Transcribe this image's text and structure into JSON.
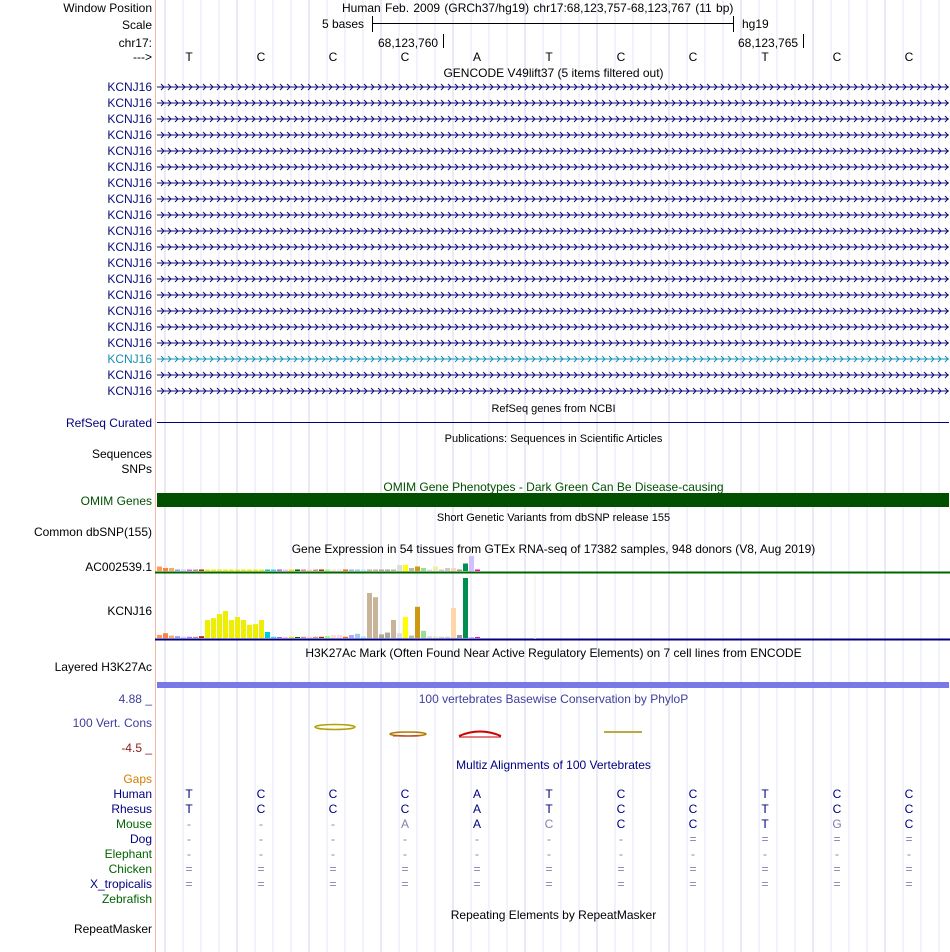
{
  "header": {
    "window_position_label": "Window Position",
    "window_position_value": "Human Feb. 2009 (GRCh37/hg19)   chr17:68,123,757-68,123,767 (11 bp)",
    "scale_label": "Scale",
    "scale_text": "5 bases",
    "assembly": "hg19",
    "chrom_label": "chr17:",
    "coord_left": "68,123,760",
    "coord_right": "68,123,765",
    "strand_label": "--->"
  },
  "bases": [
    "T",
    "C",
    "C",
    "C",
    "A",
    "T",
    "C",
    "C",
    "T",
    "C",
    "C"
  ],
  "gencode": {
    "title": "GENCODE V49lift37 (5 items filtered out)",
    "items": [
      "KCNJ16",
      "KCNJ16",
      "KCNJ16",
      "KCNJ16",
      "KCNJ16",
      "KCNJ16",
      "KCNJ16",
      "KCNJ16",
      "KCNJ16",
      "KCNJ16",
      "KCNJ16",
      "KCNJ16",
      "KCNJ16",
      "KCNJ16",
      "KCNJ16",
      "KCNJ16",
      "KCNJ16",
      "KCNJ16",
      "KCNJ16",
      "KCNJ16"
    ],
    "highlighted_index": 17,
    "colors": {
      "default": "#0c0c78",
      "highlighted": "#1a8fb5"
    }
  },
  "refseq": {
    "title": "RefSeq genes from NCBI",
    "label": "RefSeq Curated"
  },
  "publications": {
    "title": "Publications: Sequences in Scientific Articles",
    "labels": [
      "Sequences",
      "SNPs"
    ]
  },
  "omim": {
    "title": "OMIM Gene Phenotypes - Dark Green Can Be Disease-causing",
    "label": "OMIM Genes",
    "color": "#005000"
  },
  "dbsnp": {
    "title": "Short Genetic Variants from dbSNP release 155",
    "label": "Common dbSNP(155)"
  },
  "gtex": {
    "title": "Gene Expression in 54 tissues from GTEx RNA-seq of 17382 samples, 948 donors (V8, Aug 2019)",
    "genes": [
      {
        "label": "AC002539.1",
        "values": [
          0.3,
          0.2,
          0.2,
          0.1,
          0.1,
          0.1,
          0.1,
          0.1,
          0.1,
          0.1,
          0.1,
          0.1,
          0.1,
          0.1,
          0.1,
          0.1,
          0.1,
          0.1,
          0.1,
          0.1,
          0.1,
          0.1,
          0.1,
          0.1,
          0.1,
          0.1,
          0.1,
          0.1,
          0.1,
          0.1,
          0.1,
          0.1,
          0.1,
          0.1,
          0.1,
          0.1,
          0.1,
          0.1,
          0.1,
          0.1,
          0.4,
          0.4,
          0.2,
          0.3,
          0.2,
          0.1,
          0.3,
          0.1,
          0.2,
          0.2,
          0.1,
          0.5,
          1.0,
          0.1
        ]
      },
      {
        "label": "KCNJ16",
        "values": [
          0.05,
          0.08,
          0.04,
          0.03,
          0.02,
          0.02,
          0.02,
          0.03,
          0.3,
          0.33,
          0.4,
          0.45,
          0.3,
          0.35,
          0.3,
          0.22,
          0.23,
          0.3,
          0.1,
          0.02,
          0.01,
          0.01,
          0.02,
          0.01,
          0.02,
          0.02,
          0.02,
          0.02,
          0.03,
          0.05,
          0.05,
          0.02,
          0.05,
          0.07,
          0.03,
          0.75,
          0.68,
          0.06,
          0.09,
          0.3,
          0.08,
          0.35,
          0.04,
          0.52,
          0.12,
          0.03,
          0.03,
          0.02,
          0.02,
          0.5,
          0.05,
          1.0,
          0.01,
          0.01
        ]
      }
    ],
    "tissue_colors": [
      "#ff9955",
      "#ff8040",
      "#ffaa55",
      "#9999ff",
      "#ccccff",
      "#cc66ff",
      "#bb8899",
      "#bb2200",
      "#eeee00",
      "#eeee00",
      "#eeee00",
      "#eeee00",
      "#eeee00",
      "#eeee00",
      "#eeee00",
      "#eeee00",
      "#eeee00",
      "#eeee00",
      "#00cccc",
      "#33ccff",
      "#aa66ff",
      "#ffbbff",
      "#ffd700",
      "#006600",
      "#dd8899",
      "#ffcccc",
      "#cc9966",
      "#993300",
      "#99ff66",
      "#ffdddd",
      "#ffdddd",
      "#ff6600",
      "#aaaaff",
      "#99ccee",
      "#aaeeff",
      "#c8b498",
      "#c8b498",
      "#aaaa99",
      "#aaaa99",
      "#c8b498",
      "#dddddd",
      "#ffff00",
      "#bbbb99",
      "#cc9911",
      "#99dd99",
      "#dddddd",
      "#eeeeaa",
      "#cccccc",
      "#cccccc",
      "#ffd6aa",
      "#999999",
      "#008f50",
      "#d0c0ff",
      "#ff00bb"
    ]
  },
  "h3k27ac": {
    "title": "H3K27Ac Mark (Often Found Near Active Regulatory Elements) on 7 cell lines from ENCODE",
    "label": "Layered H3K27Ac",
    "color": "#7878e8"
  },
  "phylop": {
    "title": "100 vertebrates Basewise Conservation by PhyloP",
    "label": "100 Vert. Cons",
    "max": "4.88 _",
    "min": "-4.5 _"
  },
  "multiz": {
    "title": "Multiz Alignments of 100 Vertebrates",
    "gaps_label": "Gaps",
    "species": [
      {
        "name": "Human",
        "color": "#000080",
        "bases": [
          "T",
          "C",
          "C",
          "C",
          "A",
          "T",
          "C",
          "C",
          "T",
          "C",
          "C"
        ],
        "faint": []
      },
      {
        "name": "Rhesus",
        "color": "#000080",
        "bases": [
          "T",
          "C",
          "C",
          "C",
          "A",
          "T",
          "C",
          "C",
          "T",
          "C",
          "C"
        ],
        "faint": []
      },
      {
        "name": "Mouse",
        "color": "#006400",
        "bases": [
          "-",
          "-",
          "-",
          "A",
          "A",
          "C",
          "C",
          "C",
          "T",
          "G",
          "C"
        ],
        "faint": [
          0,
          1,
          2,
          3,
          5,
          9
        ]
      },
      {
        "name": "Dog",
        "color": "#000080",
        "bases": [
          "-",
          "-",
          "-",
          "-",
          "-",
          "-",
          "-",
          "=",
          "=",
          "=",
          "="
        ],
        "faint": [
          0,
          1,
          2,
          3,
          4,
          5,
          6,
          7,
          8,
          9,
          10
        ]
      },
      {
        "name": "Elephant",
        "color": "#006400",
        "bases": [
          "-",
          "-",
          "-",
          "-",
          "-",
          "-",
          "-",
          "-",
          "-",
          "-",
          "-"
        ],
        "faint": [
          0,
          1,
          2,
          3,
          4,
          5,
          6,
          7,
          8,
          9,
          10
        ]
      },
      {
        "name": "Chicken",
        "color": "#006400",
        "bases": [
          "=",
          "=",
          "=",
          "=",
          "=",
          "=",
          "=",
          "=",
          "=",
          "=",
          "="
        ],
        "faint": [
          0,
          1,
          2,
          3,
          4,
          5,
          6,
          7,
          8,
          9,
          10
        ]
      },
      {
        "name": "X_tropicalis",
        "color": "#000080",
        "bases": [
          "=",
          "=",
          "=",
          "=",
          "=",
          "=",
          "=",
          "=",
          "=",
          "=",
          "="
        ],
        "faint": [
          0,
          1,
          2,
          3,
          4,
          5,
          6,
          7,
          8,
          9,
          10
        ]
      },
      {
        "name": "Zebrafish",
        "color": "#006400",
        "bases": [
          "",
          "",
          "",
          "",
          "",
          "",
          "",
          "",
          "",
          "",
          ""
        ],
        "faint": []
      }
    ]
  },
  "repeatmasker": {
    "title": "Repeating Elements by RepeatMasker",
    "label": "RepeatMasker"
  }
}
